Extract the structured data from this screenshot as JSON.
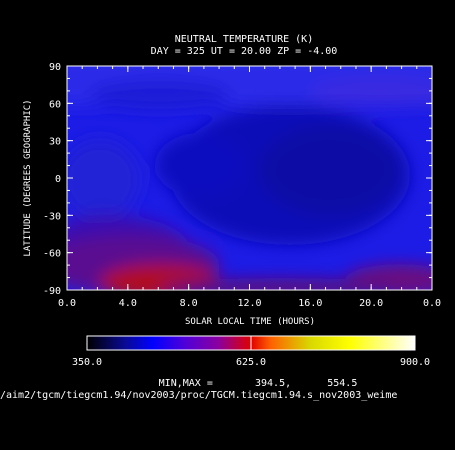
{
  "chart_data": {
    "type": "heatmap",
    "title_line1": "NEUTRAL TEMPERATURE (K)",
    "title_line2": "DAY = 325  UT = 20.00  ZP =  -4.00",
    "xlabel": "SOLAR LOCAL TIME (HOURS)",
    "ylabel": "LATITUDE (DEGREES GEOGRAPHIC)",
    "x_ticks": [
      "0.0",
      "4.0",
      "8.0",
      "12.0",
      "16.0",
      "20.0",
      "0.0"
    ],
    "y_ticks": [
      "90",
      "60",
      "30",
      "0",
      "-30",
      "-60",
      "-90"
    ],
    "xlim": [
      0,
      24
    ],
    "ylim": [
      -90,
      90
    ],
    "colorbar": {
      "min_label": "350.0",
      "mid_label": "625.0",
      "max_label": "900.0",
      "range": [
        350,
        900
      ]
    },
    "minmax_text": "MIN,MAX =       394.5,      554.5",
    "min": 394.5,
    "max": 554.5,
    "source_path": "/aim2/tgcm/tiegcm1.94/nov2003/proc/TGCM.tiegcm1.94.s_nov2003_weime",
    "colors": {
      "background": "#000000",
      "text": "#ffffff"
    }
  }
}
